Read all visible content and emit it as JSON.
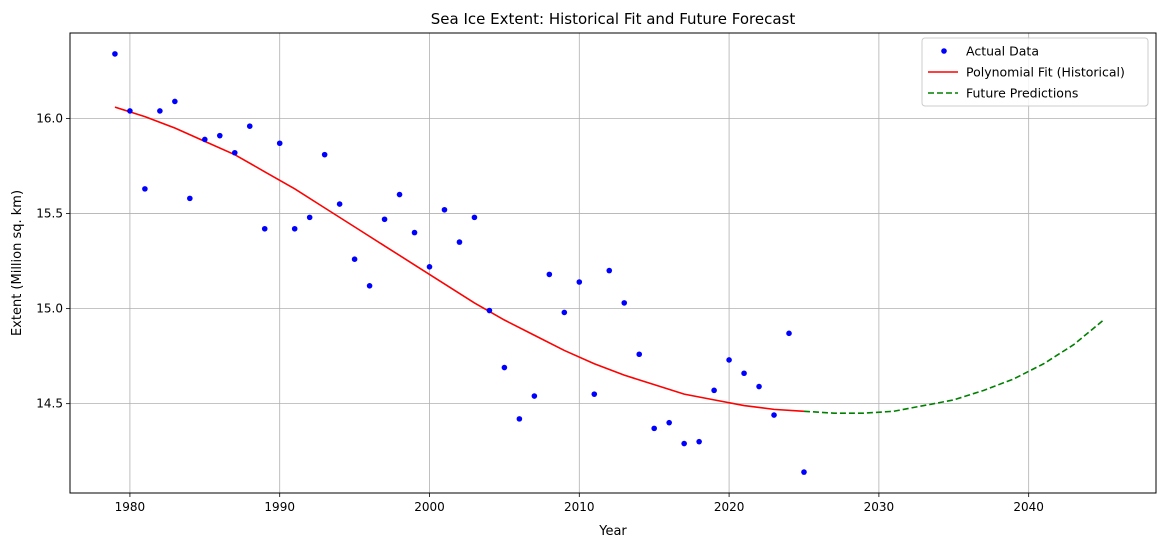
{
  "chart_data": {
    "type": "scatter",
    "title": "Sea Ice Extent: Historical Fit and Future Forecast",
    "xlabel": "Year",
    "ylabel": "Extent (Million sq. km)",
    "xlim": [
      1976,
      2048.5
    ],
    "ylim": [
      14.03,
      16.45
    ],
    "x_ticks": [
      1980,
      1990,
      2000,
      2010,
      2020,
      2030,
      2040
    ],
    "y_ticks": [
      14.5,
      15.0,
      15.5,
      16.0
    ],
    "x_tick_labels": [
      "1980",
      "1990",
      "2000",
      "2010",
      "2020",
      "2030",
      "2040"
    ],
    "y_tick_labels": [
      "14.5",
      "15.0",
      "15.5",
      "16.0"
    ],
    "grid": true,
    "legend_position": "top-right",
    "colors": {
      "scatter": "#0000ff",
      "fit": "#ff0000",
      "forecast": "#008000",
      "grid": "#b0b0b0"
    },
    "series": [
      {
        "name": "Actual Data",
        "kind": "scatter",
        "x": [
          1979,
          1980,
          1981,
          1982,
          1983,
          1984,
          1985,
          1986,
          1987,
          1988,
          1989,
          1990,
          1991,
          1992,
          1993,
          1994,
          1995,
          1996,
          1997,
          1998,
          1999,
          2000,
          2001,
          2002,
          2003,
          2004,
          2005,
          2006,
          2007,
          2008,
          2009,
          2010,
          2011,
          2012,
          2013,
          2014,
          2015,
          2016,
          2017,
          2018,
          2019,
          2020,
          2021,
          2022,
          2023,
          2024,
          2025
        ],
        "y": [
          16.34,
          16.04,
          15.63,
          16.04,
          16.09,
          15.58,
          15.89,
          15.91,
          15.82,
          15.96,
          15.42,
          15.87,
          15.42,
          15.48,
          15.81,
          15.55,
          15.26,
          15.12,
          15.47,
          15.6,
          15.4,
          15.22,
          15.52,
          15.35,
          15.48,
          14.99,
          14.69,
          14.42,
          14.54,
          15.18,
          14.98,
          15.14,
          14.55,
          15.2,
          15.03,
          14.76,
          14.37,
          14.4,
          14.29,
          14.3,
          14.57,
          14.73,
          14.66,
          14.59,
          14.44,
          14.87,
          14.14
        ]
      },
      {
        "name": "Polynomial Fit (Historical)",
        "kind": "line",
        "style": "solid",
        "x": [
          1979,
          1981,
          1983,
          1985,
          1987,
          1989,
          1991,
          1993,
          1995,
          1997,
          1999,
          2001,
          2003,
          2005,
          2007,
          2009,
          2011,
          2013,
          2015,
          2017,
          2019,
          2021,
          2023,
          2025
        ],
        "y": [
          16.06,
          16.01,
          15.95,
          15.88,
          15.81,
          15.72,
          15.63,
          15.53,
          15.43,
          15.33,
          15.23,
          15.13,
          15.03,
          14.94,
          14.86,
          14.78,
          14.71,
          14.65,
          14.6,
          14.55,
          14.52,
          14.49,
          14.47,
          14.46
        ]
      },
      {
        "name": "Future Predictions",
        "kind": "line",
        "style": "dashed",
        "x": [
          2025,
          2027,
          2029,
          2031,
          2033,
          2035,
          2037,
          2039,
          2041,
          2043,
          2045
        ],
        "y": [
          14.46,
          14.45,
          14.45,
          14.46,
          14.49,
          14.52,
          14.57,
          14.63,
          14.71,
          14.81,
          14.94
        ]
      }
    ]
  }
}
